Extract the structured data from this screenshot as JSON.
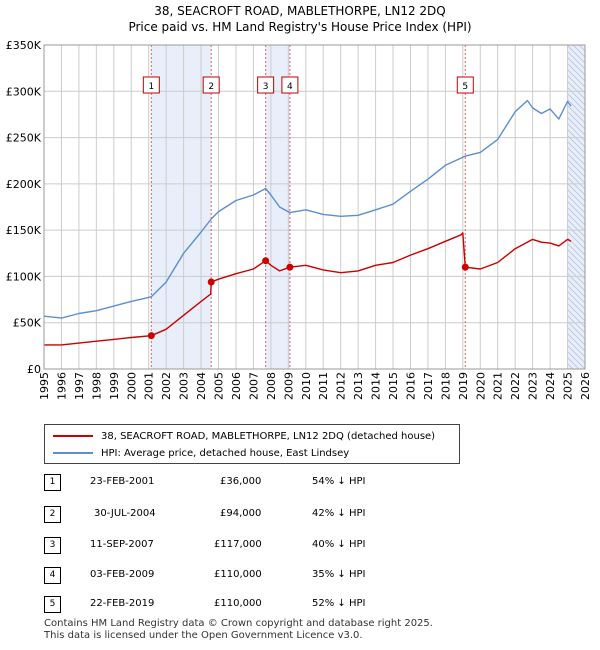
{
  "title_line1": "38, SEACROFT ROAD, MABLETHORPE, LN12 2DQ",
  "title_line2": "Price paid vs. HM Land Registry's House Price Index (HPI)",
  "colors": {
    "price_paid": "#cc0000",
    "hpi": "#5b8fd0",
    "shade": "#e8eefa",
    "grid": "#cccccc"
  },
  "chart_data": {
    "type": "line",
    "xlim": [
      1995,
      2026
    ],
    "ylim": [
      0,
      350000
    ],
    "y_ticks": [
      0,
      50000,
      100000,
      150000,
      200000,
      250000,
      300000,
      350000
    ],
    "y_tick_labels": [
      "£0",
      "£50K",
      "£100K",
      "£150K",
      "£200K",
      "£250K",
      "£300K",
      "£350K"
    ],
    "x_ticks": [
      1995,
      1996,
      1997,
      1998,
      1999,
      2000,
      2001,
      2002,
      2003,
      2004,
      2005,
      2006,
      2007,
      2008,
      2009,
      2010,
      2011,
      2012,
      2013,
      2014,
      2015,
      2016,
      2017,
      2018,
      2019,
      2020,
      2021,
      2022,
      2023,
      2024,
      2025,
      2026
    ],
    "x_tick_labels": [
      "1995",
      "1996",
      "1997",
      "1998",
      "1999",
      "2000",
      "2001",
      "2002",
      "2003",
      "2004",
      "2005",
      "2006",
      "2007",
      "2008",
      "2009",
      "2010",
      "2011",
      "2012",
      "2013",
      "2014",
      "2015",
      "2016",
      "2017",
      "2018",
      "2019",
      "2020",
      "2021",
      "2022",
      "2023",
      "2024",
      "2025",
      "2026"
    ],
    "shaded_periods": [
      [
        2001.15,
        2004.58
      ],
      [
        2007.7,
        2009.09
      ],
      [
        2025.0,
        2026.0
      ]
    ],
    "series": [
      {
        "name": "38, SEACROFT ROAD, MABLETHORPE, LN12 2DQ (detached house)",
        "x": [
          1995.0,
          1996.0,
          1997.0,
          1998.0,
          1999.0,
          2000.0,
          2001.15,
          2002.0,
          2003.0,
          2004.0,
          2004.55,
          2004.58,
          2005.0,
          2006.0,
          2007.0,
          2007.7,
          2008.0,
          2008.5,
          2009.09,
          2010.0,
          2011.0,
          2012.0,
          2013.0,
          2014.0,
          2015.0,
          2016.0,
          2017.0,
          2018.0,
          2018.9,
          2019.0,
          2019.14,
          2020.0,
          2021.0,
          2022.0,
          2023.0,
          2023.5,
          2024.0,
          2024.5,
          2025.0,
          2025.2
        ],
        "values": [
          26000,
          26000,
          28000,
          30000,
          32000,
          34000,
          36000,
          43000,
          58000,
          73000,
          81000,
          94000,
          97000,
          103000,
          108000,
          117000,
          112000,
          106000,
          110000,
          112000,
          107000,
          104000,
          106000,
          112000,
          115000,
          123000,
          130000,
          138000,
          145000,
          147000,
          110000,
          108000,
          115000,
          130000,
          140000,
          137000,
          136000,
          133000,
          140000,
          138000
        ]
      },
      {
        "name": "HPI: Average price, detached house, East Lindsey",
        "x": [
          1995.0,
          1996.0,
          1997.0,
          1998.0,
          1999.0,
          2000.0,
          2001.15,
          2002.0,
          2003.0,
          2004.0,
          2004.58,
          2005.0,
          2006.0,
          2007.0,
          2007.7,
          2008.0,
          2008.5,
          2009.09,
          2010.0,
          2011.0,
          2012.0,
          2013.0,
          2014.0,
          2015.0,
          2016.0,
          2017.0,
          2018.0,
          2019.14,
          2020.0,
          2021.0,
          2022.0,
          2022.7,
          2023.0,
          2023.5,
          2024.0,
          2024.5,
          2025.0,
          2025.2
        ],
        "values": [
          57000,
          55000,
          60000,
          63000,
          68000,
          73000,
          78000,
          94000,
          125000,
          148000,
          162000,
          170000,
          182000,
          188000,
          195000,
          188000,
          175000,
          169000,
          172000,
          167000,
          165000,
          166000,
          172000,
          178000,
          192000,
          205000,
          220000,
          230000,
          234000,
          248000,
          278000,
          290000,
          282000,
          276000,
          281000,
          270000,
          289000,
          284000
        ]
      }
    ],
    "sales": [
      {
        "label": "1",
        "x": 2001.15,
        "y": 36000
      },
      {
        "label": "2",
        "x": 2004.58,
        "y": 94000
      },
      {
        "label": "3",
        "x": 2007.7,
        "y": 117000
      },
      {
        "label": "4",
        "x": 2009.09,
        "y": 110000
      },
      {
        "label": "5",
        "x": 2019.14,
        "y": 110000
      }
    ]
  },
  "legend": {
    "price_paid_label": "38, SEACROFT ROAD, MABLETHORPE, LN12 2DQ (detached house)",
    "hpi_label": "HPI: Average price, detached house, East Lindsey"
  },
  "transactions": [
    {
      "num": "1",
      "date": "23-FEB-2001",
      "price": "£36,000",
      "hpi": "54% ↓ HPI"
    },
    {
      "num": "2",
      "date": "30-JUL-2004",
      "price": "£94,000",
      "hpi": "42% ↓ HPI"
    },
    {
      "num": "3",
      "date": "11-SEP-2007",
      "price": "£117,000",
      "hpi": "40% ↓ HPI"
    },
    {
      "num": "4",
      "date": "03-FEB-2009",
      "price": "£110,000",
      "hpi": "35% ↓ HPI"
    },
    {
      "num": "5",
      "date": "22-FEB-2019",
      "price": "£110,000",
      "hpi": "52% ↓ HPI"
    }
  ],
  "footer": {
    "line1": "Contains HM Land Registry data © Crown copyright and database right 2025.",
    "line2": "This data is licensed under the Open Government Licence v3.0."
  }
}
